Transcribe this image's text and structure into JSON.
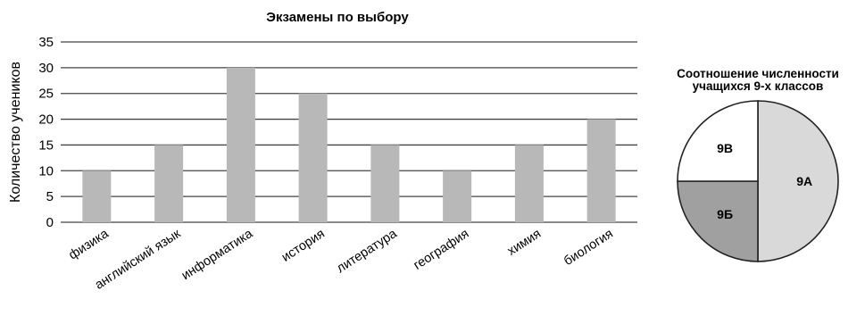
{
  "chart_data": [
    {
      "type": "bar",
      "title": "Экзамены по выбору",
      "xlabel": "",
      "ylabel": "Количество учеников",
      "categories": [
        "физика",
        "английский язык",
        "информатика",
        "история",
        "литература",
        "география",
        "химия",
        "биология"
      ],
      "values": [
        10,
        15,
        30,
        25,
        15,
        10,
        15,
        20
      ],
      "ylim": [
        0,
        35
      ],
      "yticks": [
        0,
        5,
        10,
        15,
        20,
        25,
        30,
        35
      ],
      "grid": true,
      "colors": {
        "bar": "#b8b8b8",
        "grid": "#444444"
      }
    },
    {
      "type": "pie",
      "title_lines": [
        "Соотношение численности",
        "учащихся 9-х классов"
      ],
      "slices": [
        {
          "label": "9А",
          "value": 50,
          "color": "#d9d9d9"
        },
        {
          "label": "9Б",
          "value": 25,
          "color": "#a0a0a0"
        },
        {
          "label": "9В",
          "value": 25,
          "color": "#ffffff"
        }
      ]
    }
  ]
}
